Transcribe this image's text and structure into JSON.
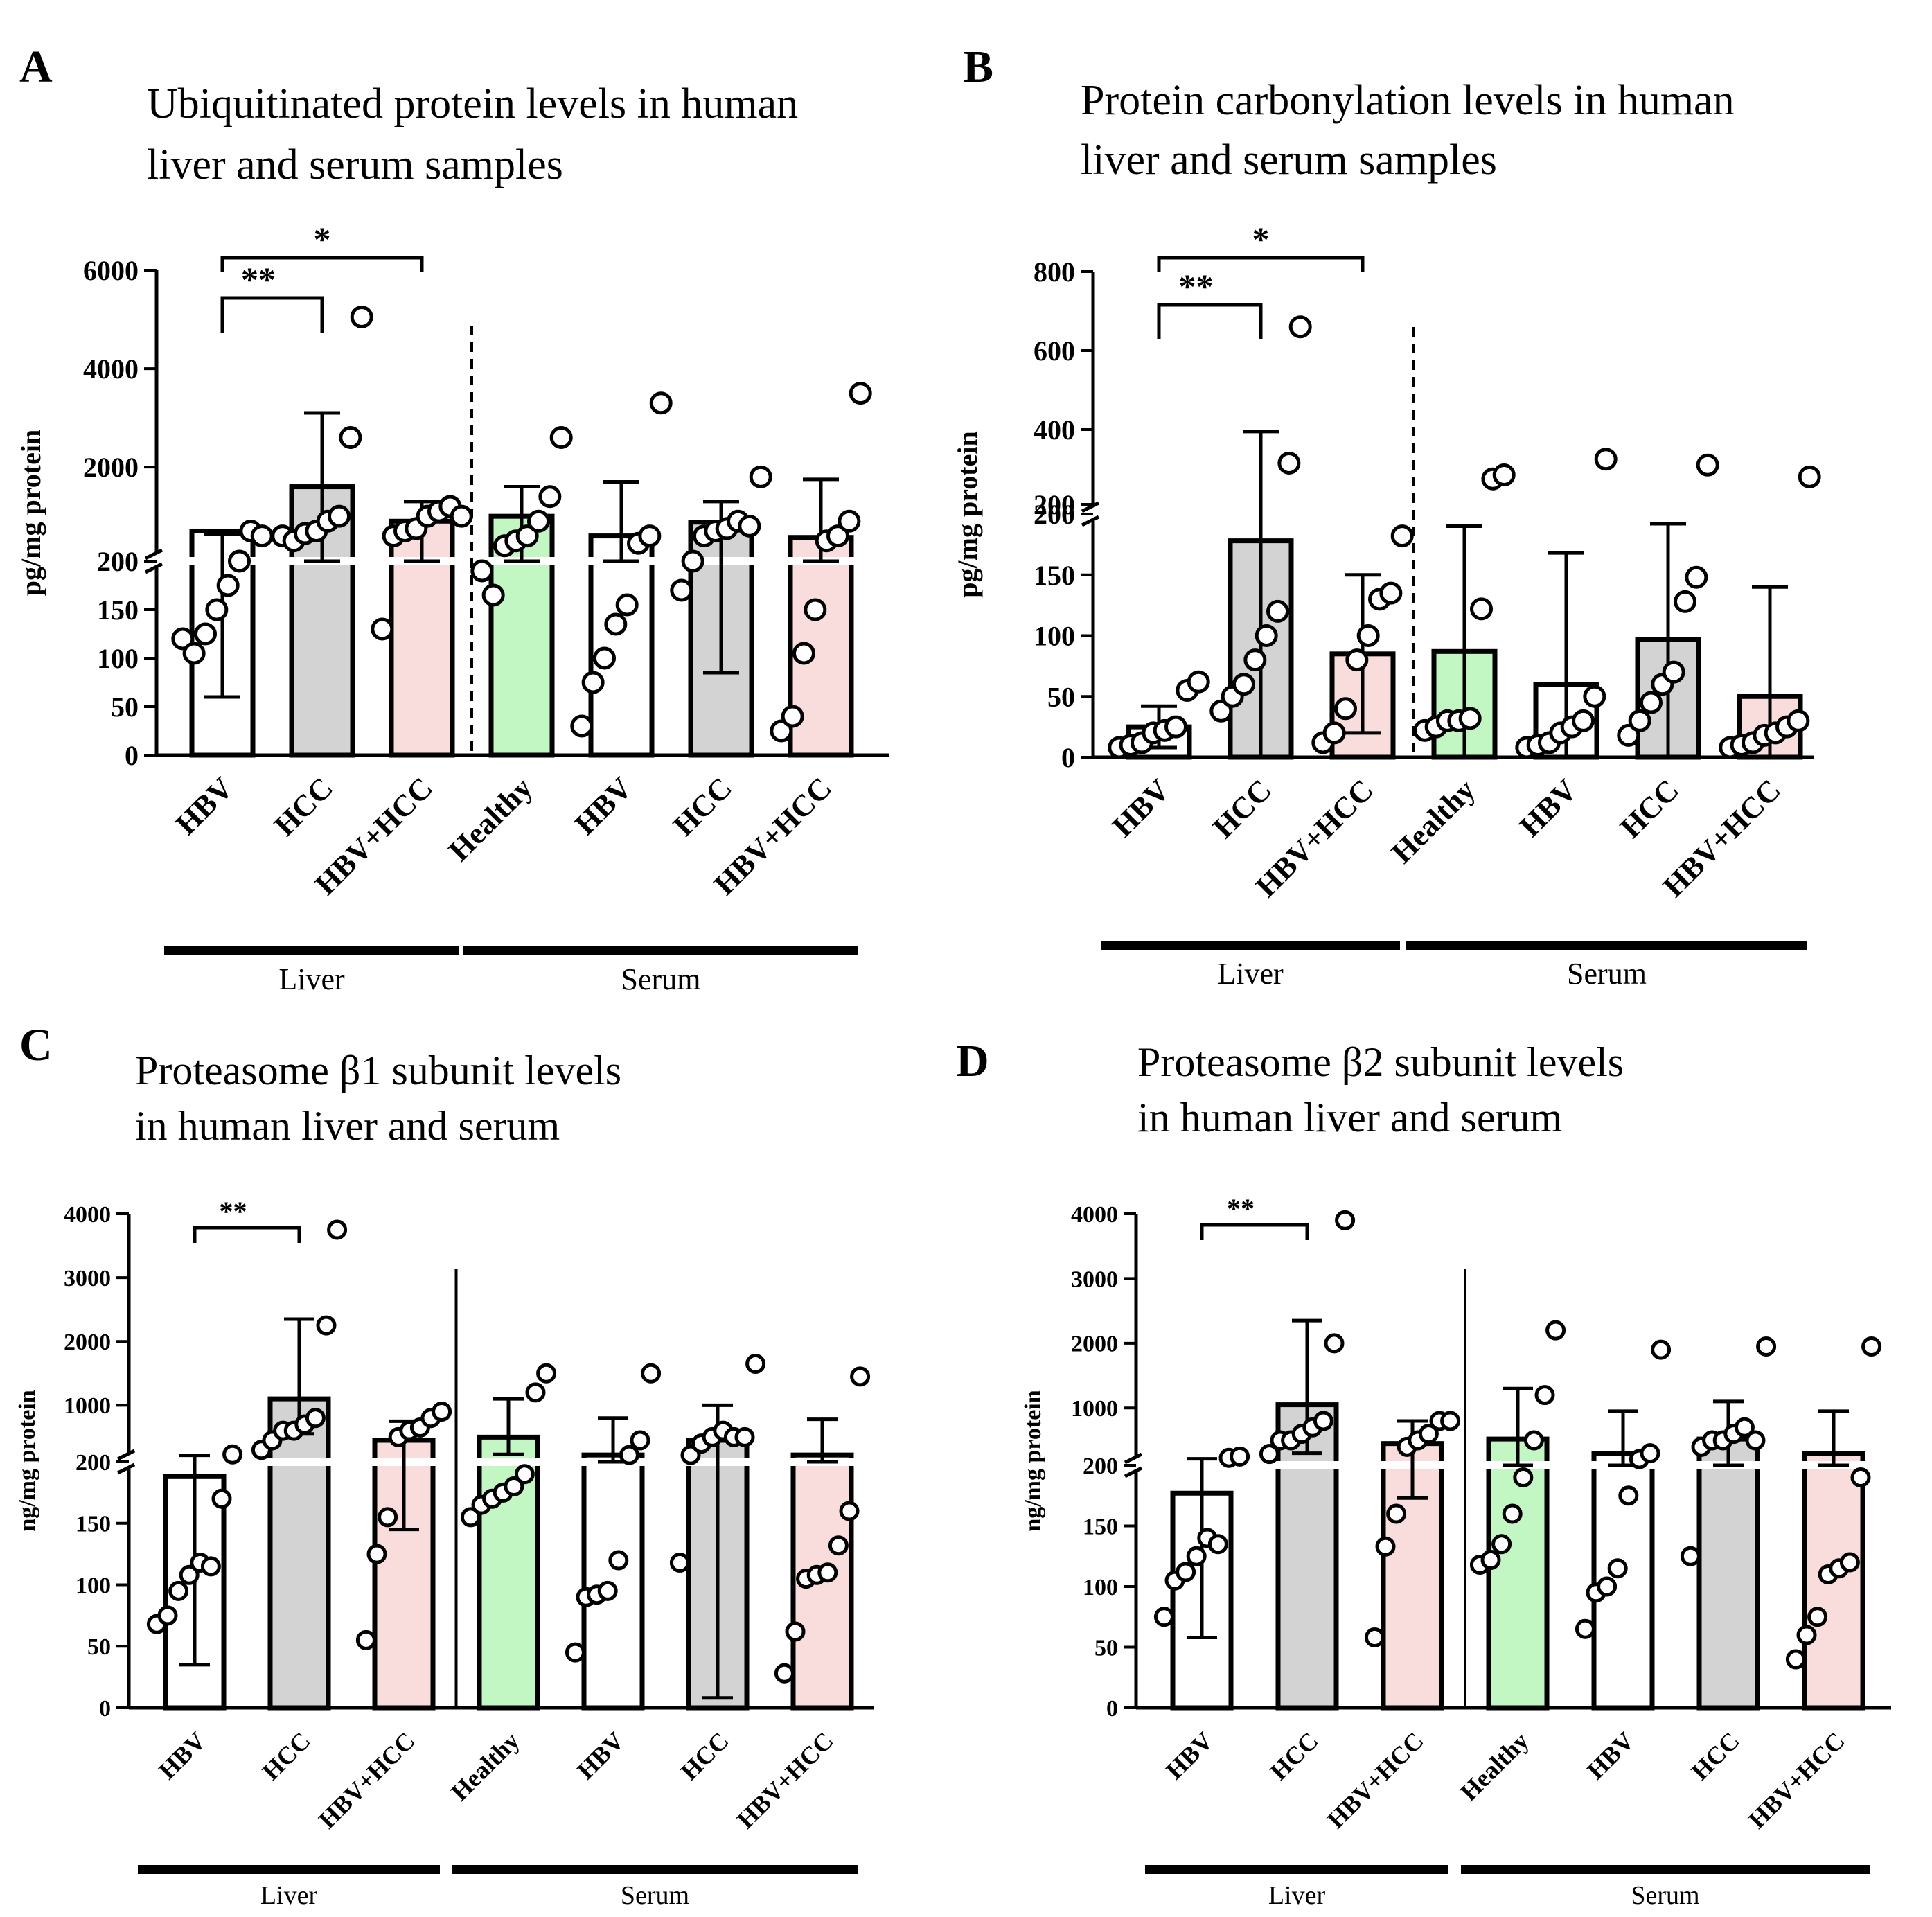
{
  "chart_data": [
    {
      "panel": "A",
      "type": "bar",
      "title_lines": [
        "Ubiquitinated protein levels in human",
        "liver and serum samples"
      ],
      "ylabel": "pg/mg protein",
      "y_axis_break": true,
      "lower_ylim": [
        0,
        200
      ],
      "lower_ticks": [
        "0",
        "50",
        "100",
        "150",
        "200"
      ],
      "upper_ylim": [
        0,
        6000
      ],
      "upper_ticks": [
        "2000",
        "4000",
        "6000"
      ],
      "categories": [
        "HBV",
        "HCC",
        "HBV+HCC",
        "Healthy",
        "HBV",
        "HCC",
        "HBV+HCC"
      ],
      "groups": [
        {
          "label": "Liver",
          "from": 0,
          "to": 2
        },
        {
          "label": "Serum",
          "from": 3,
          "to": 6
        }
      ],
      "separator": "dashed",
      "significance": [
        {
          "from": 0,
          "to": 1,
          "label": "**"
        },
        {
          "from": 0,
          "to": 2,
          "label": "*"
        }
      ],
      "bar_colors": [
        "#ffffff",
        "#d3d3d3",
        "#f9dcdc",
        "#c2f7c4",
        "#ffffff",
        "#d3d3d3",
        "#f9dcdc"
      ],
      "series": [
        {
          "name": "Mean",
          "values": [
            700,
            1600,
            900,
            1000,
            600,
            880,
            570
          ]
        },
        {
          "name": "Error high",
          "values": [
            640,
            3100,
            1300,
            1600,
            1700,
            1300,
            1750
          ]
        },
        {
          "name": "Error low",
          "values": [
            60,
            200,
            200,
            200,
            200,
            85,
            200
          ]
        }
      ],
      "points": [
        [
          120,
          105,
          125,
          150,
          175,
          200,
          700,
          600
        ],
        [
          600,
          500,
          650,
          700,
          900,
          1000,
          2600,
          5050
        ],
        [
          130,
          600,
          700,
          750,
          1000,
          1100,
          1200,
          1000
        ],
        [
          190,
          165,
          400,
          500,
          600,
          900,
          1400,
          2600
        ],
        [
          30,
          75,
          100,
          135,
          155,
          450,
          600,
          3300
        ],
        [
          170,
          200,
          600,
          700,
          750,
          900,
          800,
          1800
        ],
        [
          25,
          40,
          105,
          150,
          500,
          600,
          900,
          3500
        ]
      ]
    },
    {
      "panel": "B",
      "type": "bar",
      "title_lines": [
        "Protein carbonylation levels in human",
        "liver and serum samples"
      ],
      "ylabel": "pg/mg protein",
      "y_axis_break": true,
      "lower_ylim": [
        0,
        200
      ],
      "lower_ticks": [
        "0",
        "50",
        "100",
        "150",
        "200"
      ],
      "upper_ylim": [
        200,
        800
      ],
      "upper_ticks": [
        "200",
        "400",
        "600",
        "800"
      ],
      "categories": [
        "HBV",
        "HCC",
        "HBV+HCC",
        "Healthy",
        "HBV",
        "HCC",
        "HBV+HCC"
      ],
      "groups": [
        {
          "label": "Liver",
          "from": 0,
          "to": 2
        },
        {
          "label": "Serum",
          "from": 3,
          "to": 6
        }
      ],
      "separator": "dashed",
      "significance": [
        {
          "from": 0,
          "to": 1,
          "label": "**"
        },
        {
          "from": 0,
          "to": 2,
          "label": "*"
        }
      ],
      "bar_colors": [
        "#ffffff",
        "#d3d3d3",
        "#f9dcdc",
        "#c2f7c4",
        "#ffffff",
        "#d3d3d3",
        "#f9dcdc"
      ],
      "series": [
        {
          "name": "Mean",
          "values": [
            25,
            178,
            85,
            87,
            60,
            97,
            50
          ]
        },
        {
          "name": "Error high",
          "values": [
            42,
            395,
            150,
            190,
            168,
            192,
            140
          ]
        },
        {
          "name": "Error low",
          "values": [
            8,
            0,
            20,
            0,
            0,
            0,
            0
          ]
        }
      ],
      "points": [
        [
          8,
          10,
          12,
          20,
          22,
          25,
          55,
          62
        ],
        [
          38,
          50,
          60,
          80,
          100,
          120,
          315,
          660
        ],
        [
          12,
          20,
          40,
          80,
          100,
          130,
          135,
          182
        ],
        [
          22,
          25,
          30,
          30,
          32,
          122,
          275,
          285
        ],
        [
          8,
          10,
          12,
          20,
          25,
          30,
          50,
          325
        ],
        [
          18,
          30,
          45,
          60,
          70,
          128,
          148,
          310
        ],
        [
          8,
          10,
          12,
          18,
          20,
          25,
          30,
          280
        ]
      ]
    },
    {
      "panel": "C",
      "type": "bar",
      "title_lines": [
        "Proteasome β1 subunit levels",
        "in human liver and serum"
      ],
      "ylabel": "ng/mg protein",
      "y_axis_break": true,
      "lower_ylim": [
        0,
        200
      ],
      "lower_ticks": [
        "0",
        "50",
        "100",
        "150",
        "200"
      ],
      "upper_ylim": [
        0,
        4000
      ],
      "upper_ticks": [
        "1000",
        "2000",
        "3000",
        "4000"
      ],
      "categories": [
        "HBV",
        "HCC",
        "HBV+HCC",
        "Healthy",
        "HBV",
        "HCC",
        "HBV+HCC"
      ],
      "groups": [
        {
          "label": "Liver",
          "from": 0,
          "to": 2
        },
        {
          "label": "Serum",
          "from": 3,
          "to": 6
        }
      ],
      "separator": "solid",
      "significance": [
        {
          "from": 0,
          "to": 1,
          "label": "**"
        }
      ],
      "bar_colors": [
        "#ffffff",
        "#d3d3d3",
        "#f9dcdc",
        "#c2f7c4",
        "#ffffff",
        "#d3d3d3",
        "#f9dcdc"
      ],
      "series": [
        {
          "name": "Mean",
          "values": [
            188,
            1100,
            450,
            500,
            220,
            450,
            220
          ]
        },
        {
          "name": "Error high",
          "values": [
            215,
            2350,
            750,
            1100,
            800,
            1000,
            780
          ]
        },
        {
          "name": "Error low",
          "values": [
            35,
            550,
            145,
            230,
            200,
            8,
            200
          ]
        }
      ],
      "points": [
        [
          68,
          75,
          95,
          108,
          118,
          115,
          170,
          230
        ],
        [
          300,
          450,
          600,
          600,
          700,
          800,
          2250,
          3750
        ],
        [
          55,
          125,
          155,
          500,
          600,
          650,
          800,
          900
        ],
        [
          155,
          165,
          170,
          175,
          180,
          190,
          1200,
          1500
        ],
        [
          45,
          90,
          92,
          95,
          120,
          220,
          450,
          1500
        ],
        [
          118,
          220,
          400,
          500,
          600,
          500,
          500,
          1650
        ],
        [
          28,
          62,
          105,
          108,
          110,
          132,
          160,
          1450
        ]
      ]
    },
    {
      "panel": "D",
      "type": "bar",
      "title_lines": [
        "Proteasome β2 subunit levels",
        "in human liver and serum"
      ],
      "ylabel": "ng/mg protein",
      "y_axis_break": true,
      "lower_ylim": [
        0,
        200
      ],
      "lower_ticks": [
        "0",
        "50",
        "100",
        "150",
        "200"
      ],
      "upper_ylim": [
        0,
        4000
      ],
      "upper_ticks": [
        "1000",
        "2000",
        "3000",
        "4000"
      ],
      "categories": [
        "HBV",
        "HCC",
        "HBV+HCC",
        "Healthy",
        "HBV",
        "HCC",
        "HBV+HCC"
      ],
      "groups": [
        {
          "label": "Liver",
          "from": 0,
          "to": 2
        },
        {
          "label": "Serum",
          "from": 3,
          "to": 6
        }
      ],
      "separator": "solid",
      "significance": [
        {
          "from": 0,
          "to": 1,
          "label": "**"
        }
      ],
      "bar_colors": [
        "#ffffff",
        "#d3d3d3",
        "#f9dcdc",
        "#c2f7c4",
        "#ffffff",
        "#d3d3d3",
        "#f9dcdc"
      ],
      "series": [
        {
          "name": "Mean",
          "values": [
            177,
            1050,
            450,
            520,
            300,
            520,
            300
          ]
        },
        {
          "name": "Error high",
          "values": [
            215,
            2350,
            800,
            1300,
            950,
            1100,
            950
          ]
        },
        {
          "name": "Error low",
          "values": [
            58,
            300,
            173,
            200,
            200,
            200,
            200
          ]
        }
      ],
      "points": [
        [
          75,
          105,
          112,
          125,
          140,
          135,
          230,
          250
        ],
        [
          290,
          500,
          500,
          600,
          700,
          800,
          2000,
          3900
        ],
        [
          58,
          133,
          160,
          400,
          500,
          600,
          800,
          800
        ],
        [
          118,
          122,
          135,
          160,
          190,
          500,
          1200,
          2200
        ],
        [
          65,
          95,
          100,
          115,
          175,
          210,
          300,
          1900
        ],
        [
          125,
          400,
          500,
          500,
          600,
          700,
          500,
          1950
        ],
        [
          40,
          60,
          75,
          110,
          115,
          120,
          190,
          1950
        ]
      ]
    }
  ]
}
